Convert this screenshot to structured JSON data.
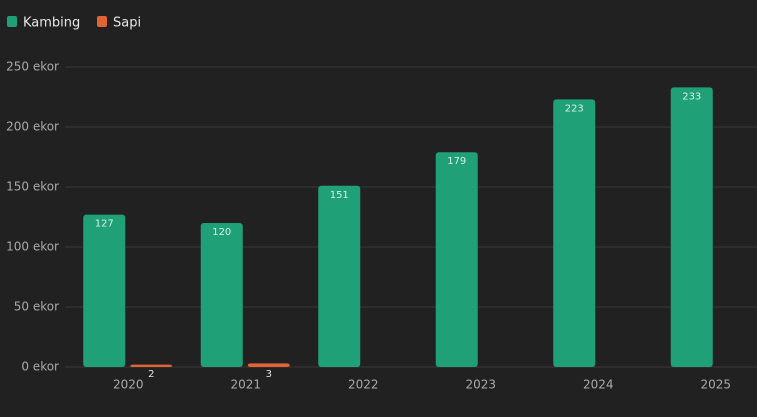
{
  "chart_data": {
    "type": "bar",
    "categories": [
      "2020",
      "2021",
      "2022",
      "2023",
      "2024",
      "2025"
    ],
    "series": [
      {
        "name": "Kambing",
        "color": "#1fa077",
        "values": [
          127,
          120,
          151,
          179,
          223,
          233
        ]
      },
      {
        "name": "Sapi",
        "color": "#e06436",
        "values": [
          2,
          3,
          null,
          null,
          null,
          null
        ]
      }
    ],
    "ylim": [
      0,
      250
    ],
    "yticks": [
      {
        "value": 0,
        "label": "0 ekor"
      },
      {
        "value": 50,
        "label": "50 ekor"
      },
      {
        "value": 100,
        "label": "100 ekor"
      },
      {
        "value": 150,
        "label": "150 ekor"
      },
      {
        "value": 200,
        "label": "200 ekor"
      },
      {
        "value": 250,
        "label": "250 ekor"
      }
    ],
    "grid": true,
    "legend": "top-left"
  }
}
